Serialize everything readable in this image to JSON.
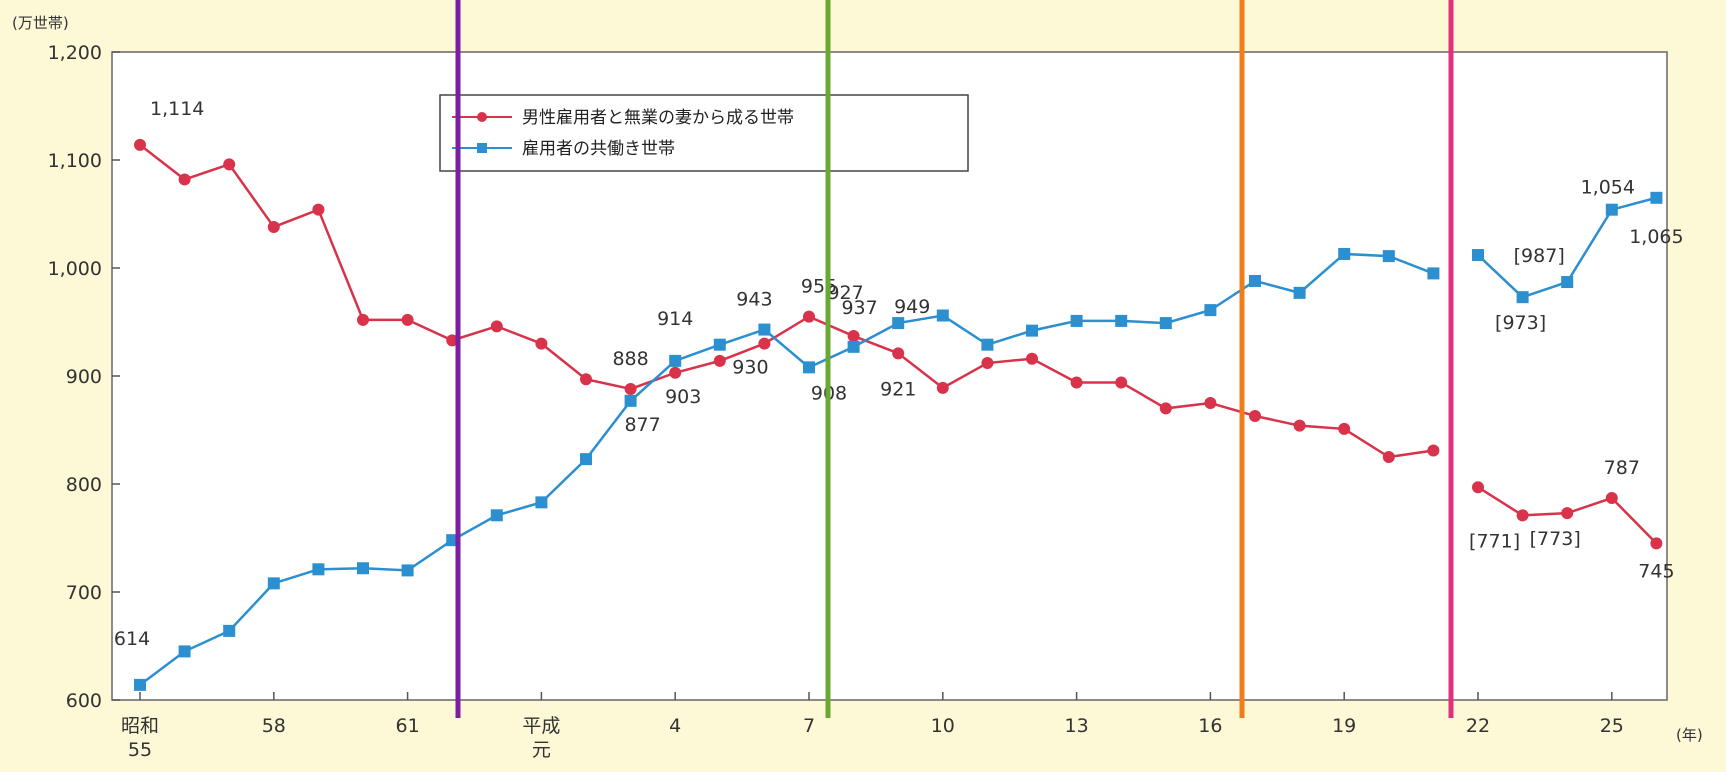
{
  "chart_data": {
    "type": "line",
    "y_unit": "(万世帯)",
    "x_unit": "(年)",
    "ylim": [
      600,
      1200
    ],
    "y_ticks": [
      "600",
      "700",
      "800",
      "900",
      "1,000",
      "1,100",
      "1,200"
    ],
    "x_ticks": [
      "昭和\n55",
      "58",
      "61",
      "平成\n元",
      "4",
      "7",
      "10",
      "13",
      "16",
      "19",
      "22",
      "25"
    ],
    "x": [
      "昭和55",
      "56",
      "57",
      "58",
      "59",
      "60",
      "61",
      "62",
      "63",
      "平成元",
      "2",
      "3",
      "4",
      "5",
      "6",
      "7",
      "8",
      "9",
      "10",
      "11",
      "12",
      "13",
      "14",
      "15",
      "16",
      "17",
      "18",
      "19",
      "20",
      "21",
      "22",
      "22*",
      "23*",
      "24",
      "25"
    ],
    "series": [
      {
        "name": "男性雇用者と無業の妻から成る世帯",
        "color": "#d8334a",
        "values": [
          1114,
          1082,
          1096,
          1038,
          1054,
          952,
          952,
          933,
          946,
          930,
          897,
          888,
          903,
          914,
          930,
          955,
          937,
          921,
          889,
          912,
          916,
          894,
          894,
          870,
          875,
          863,
          854,
          851,
          825,
          831,
          797,
          771,
          773,
          787,
          745
        ]
      },
      {
        "name": "雇用者の共働き世帯",
        "color": "#2b8fd0",
        "values": [
          614,
          645,
          664,
          708,
          721,
          722,
          720,
          748,
          771,
          783,
          823,
          877,
          914,
          929,
          943,
          908,
          927,
          949,
          956,
          929,
          942,
          951,
          951,
          949,
          961,
          988,
          977,
          1013,
          1011,
          995,
          1012,
          973,
          987,
          1054,
          1065
        ]
      }
    ],
    "gaps": [
      30
    ],
    "data_labels": [
      {
        "series": 0,
        "index": 0,
        "text": "1,114"
      },
      {
        "series": 0,
        "index": 11,
        "text": "888"
      },
      {
        "series": 0,
        "index": 12,
        "text": "903"
      },
      {
        "series": 0,
        "index": 14,
        "text": "930"
      },
      {
        "series": 0,
        "index": 15,
        "text": "955"
      },
      {
        "series": 0,
        "index": 16,
        "text": "937"
      },
      {
        "series": 0,
        "index": 17,
        "text": "921"
      },
      {
        "series": 0,
        "index": 31,
        "text": "[771]"
      },
      {
        "series": 0,
        "index": 32,
        "text": "[773]"
      },
      {
        "series": 0,
        "index": 33,
        "text": "787"
      },
      {
        "series": 0,
        "index": 34,
        "text": "745"
      },
      {
        "series": 1,
        "index": 0,
        "text": "614"
      },
      {
        "series": 1,
        "index": 11,
        "text": "877"
      },
      {
        "series": 1,
        "index": 12,
        "text": "914"
      },
      {
        "series": 1,
        "index": 14,
        "text": "943"
      },
      {
        "series": 1,
        "index": 15,
        "text": "908"
      },
      {
        "series": 1,
        "index": 16,
        "text": "927"
      },
      {
        "series": 1,
        "index": 17,
        "text": "949"
      },
      {
        "series": 1,
        "index": 31,
        "text": "[973]"
      },
      {
        "series": 1,
        "index": 32,
        "text": "[987]"
      },
      {
        "series": 1,
        "index": 33,
        "text": "1,054"
      },
      {
        "series": 1,
        "index": 34,
        "text": "1,065"
      }
    ],
    "marker_line_colors": [
      "#7b1fa2",
      "#6aa832",
      "#f07d1a",
      "#e0307e"
    ],
    "grid": false,
    "legend_position": "top-center"
  }
}
